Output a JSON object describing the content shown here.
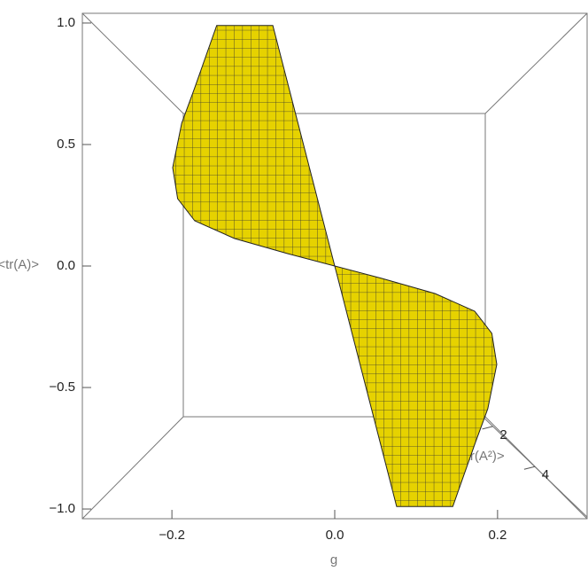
{
  "chart_data": {
    "type": "surface",
    "x_label": "g",
    "y_label": "<tr(A)>",
    "z_label": "<tr(A²)>",
    "xlim": [
      -0.31,
      0.31
    ],
    "ylim": [
      -1.04,
      1.04
    ],
    "zlim": [
      1.3,
      6.5
    ],
    "xticks": [
      {
        "value": -0.2,
        "label": "−0.2"
      },
      {
        "value": 0,
        "label": "0.0"
      },
      {
        "value": 0.2,
        "label": "0.2"
      }
    ],
    "yticks": [
      {
        "value": 1,
        "label": "1.0"
      },
      {
        "value": 0.5,
        "label": "0.5"
      },
      {
        "value": 0,
        "label": "0.0"
      },
      {
        "value": -0.5,
        "label": "−0.5"
      },
      {
        "value": -1,
        "label": "−1.0"
      }
    ],
    "zticks": [
      2,
      4
    ],
    "color": "#e6d200",
    "outline": {
      "x": [
        -0.145,
        -0.076,
        0,
        0.058,
        0.123,
        0.172,
        0.193,
        0.199,
        0.188,
        0.172,
        0.145,
        0.076,
        0,
        -0.058,
        -0.123,
        -0.172,
        -0.193,
        -0.199,
        -0.188,
        -0.172
      ],
      "y": [
        0.99,
        0.99,
        0,
        -0.051,
        -0.113,
        -0.186,
        -0.277,
        -0.405,
        -0.588,
        -0.734,
        -0.99,
        -0.99,
        0,
        0.051,
        0.113,
        0.186,
        0.277,
        0.405,
        0.588,
        0.734
      ]
    }
  }
}
